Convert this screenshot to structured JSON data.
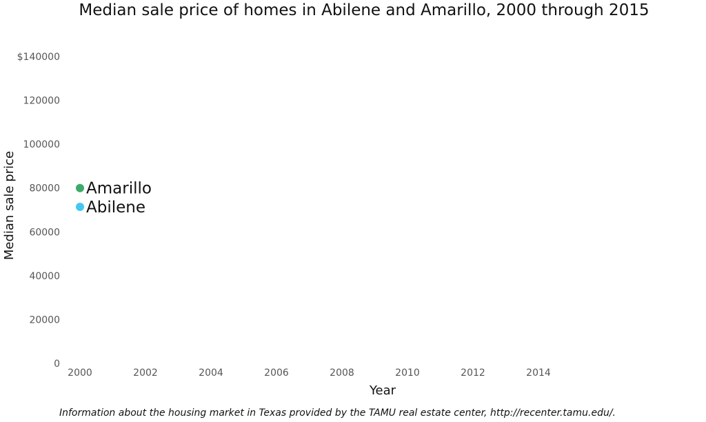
{
  "chart_data": {
    "type": "scatter",
    "title": "Median sale price of homes in Abilene and Amarillo, 2000 through 2015",
    "xlabel": "Year",
    "ylabel": "Median sale price",
    "caption": "Information about the housing market in Texas provided by the TAMU real estate center, http://recenter.tamu.edu/.",
    "xlim": [
      1999.6,
      2018.6
    ],
    "ylim": [
      0,
      140000
    ],
    "x_ticks": [
      "2000",
      "2002",
      "2004",
      "2006",
      "2008",
      "2010",
      "2012",
      "2014"
    ],
    "y_ticks": [
      "0",
      "20000",
      "40000",
      "60000",
      "80000",
      "100000",
      "120000",
      "$140000"
    ],
    "grid": false,
    "series": [
      {
        "name": "Amarillo",
        "color": "#3daa6c",
        "points": [
          {
            "x": 2000,
            "y": 80000
          }
        ]
      },
      {
        "name": "Abilene",
        "color": "#44c7f4",
        "points": [
          {
            "x": 2000,
            "y": 71400
          }
        ]
      }
    ]
  }
}
